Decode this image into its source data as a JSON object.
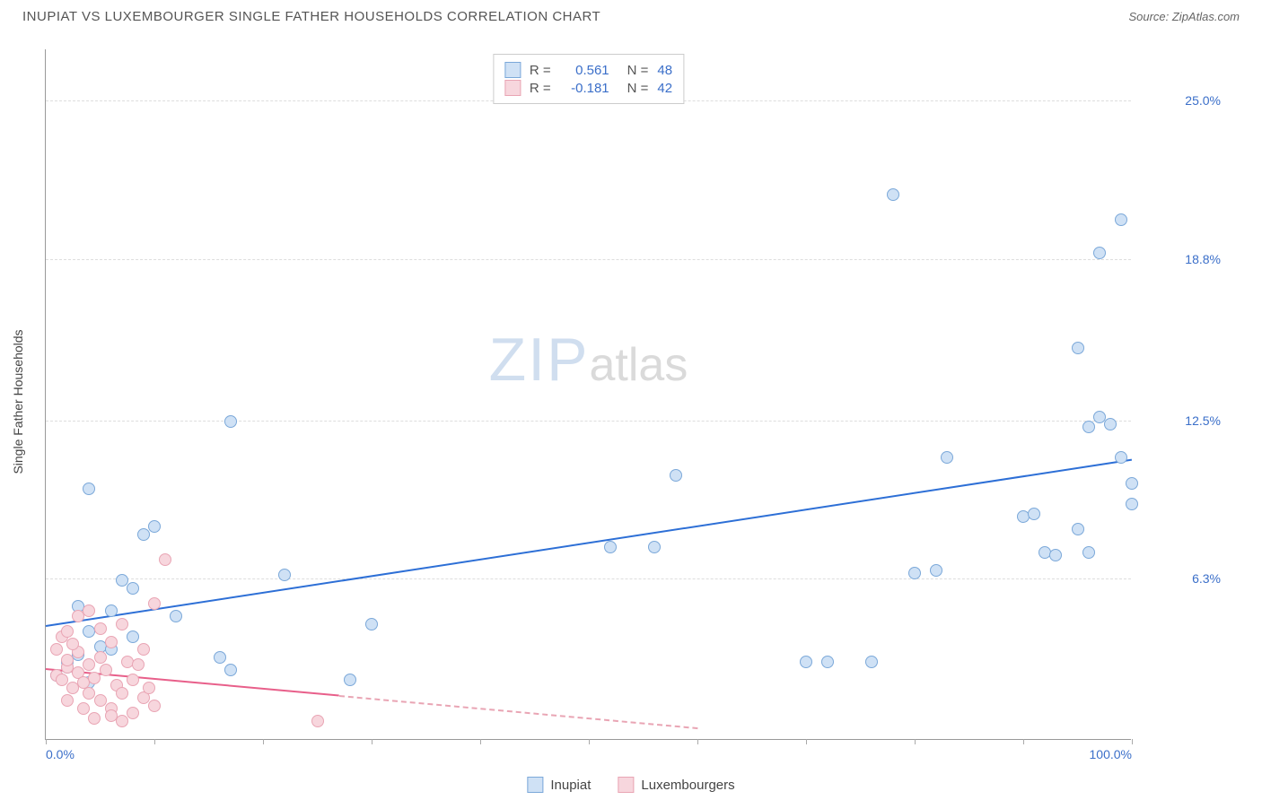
{
  "title": "INUPIAT VS LUXEMBOURGER SINGLE FATHER HOUSEHOLDS CORRELATION CHART",
  "source_label": "Source: ZipAtlas.com",
  "watermark_zip": "ZIP",
  "watermark_atlas": "atlas",
  "chart": {
    "type": "scatter",
    "y_axis_title": "Single Father Households",
    "xlim": [
      0,
      100
    ],
    "ylim": [
      0,
      27
    ],
    "x_ticks": [
      0,
      10,
      20,
      30,
      40,
      50,
      60,
      70,
      80,
      90,
      100
    ],
    "x_tick_labels_shown": {
      "0": "0.0%",
      "100": "100.0%"
    },
    "y_ticks": [
      6.3,
      12.5,
      18.8,
      25.0
    ],
    "y_tick_labels": [
      "6.3%",
      "12.5%",
      "18.8%",
      "25.0%"
    ],
    "grid_color": "#dddddd",
    "axis_color": "#999999",
    "background_color": "#ffffff",
    "x_label_color": "#3b6fc9",
    "y_label_color": "#3b6fc9",
    "marker_radius": 7,
    "marker_stroke_width": 1,
    "series": [
      {
        "name": "Inupiat",
        "fill": "#cfe1f5",
        "stroke": "#7ba8d9",
        "trend_color": "#2d6fd6",
        "trend_dash_color": "#2d6fd6",
        "R_label": "R =",
        "R_value": "0.561",
        "N_label": "N =",
        "N_value": "48",
        "trend": {
          "x1": 0,
          "y1": 4.5,
          "x2": 100,
          "y2": 11.0
        },
        "points": [
          {
            "x": 4,
            "y": 9.8
          },
          {
            "x": 17,
            "y": 12.4
          },
          {
            "x": 7,
            "y": 6.2
          },
          {
            "x": 8,
            "y": 5.9
          },
          {
            "x": 9,
            "y": 8.0
          },
          {
            "x": 10,
            "y": 8.3
          },
          {
            "x": 22,
            "y": 6.4
          },
          {
            "x": 4,
            "y": 4.2
          },
          {
            "x": 6,
            "y": 5.0
          },
          {
            "x": 2,
            "y": 3.0
          },
          {
            "x": 3,
            "y": 3.3
          },
          {
            "x": 5,
            "y": 3.6
          },
          {
            "x": 1,
            "y": 2.5
          },
          {
            "x": 2,
            "y": 2.8
          },
          {
            "x": 4,
            "y": 2.2
          },
          {
            "x": 16,
            "y": 3.2
          },
          {
            "x": 17,
            "y": 2.7
          },
          {
            "x": 28,
            "y": 2.3
          },
          {
            "x": 30,
            "y": 4.5
          },
          {
            "x": 52,
            "y": 7.5
          },
          {
            "x": 56,
            "y": 7.5
          },
          {
            "x": 58,
            "y": 10.3
          },
          {
            "x": 70,
            "y": 3.0
          },
          {
            "x": 72,
            "y": 3.0
          },
          {
            "x": 76,
            "y": 3.0
          },
          {
            "x": 80,
            "y": 6.5
          },
          {
            "x": 82,
            "y": 6.6
          },
          {
            "x": 83,
            "y": 11.0
          },
          {
            "x": 78,
            "y": 21.3
          },
          {
            "x": 90,
            "y": 8.7
          },
          {
            "x": 91,
            "y": 8.8
          },
          {
            "x": 92,
            "y": 7.3
          },
          {
            "x": 93,
            "y": 7.2
          },
          {
            "x": 95,
            "y": 8.2
          },
          {
            "x": 96,
            "y": 7.3
          },
          {
            "x": 95,
            "y": 15.3
          },
          {
            "x": 96,
            "y": 12.2
          },
          {
            "x": 97,
            "y": 12.6
          },
          {
            "x": 98,
            "y": 12.3
          },
          {
            "x": 97,
            "y": 19.0
          },
          {
            "x": 99,
            "y": 20.3
          },
          {
            "x": 99,
            "y": 11.0
          },
          {
            "x": 100,
            "y": 10.0
          },
          {
            "x": 100,
            "y": 9.2
          },
          {
            "x": 8,
            "y": 4.0
          },
          {
            "x": 12,
            "y": 4.8
          },
          {
            "x": 3,
            "y": 5.2
          },
          {
            "x": 6,
            "y": 3.5
          }
        ]
      },
      {
        "name": "Luxembourgers",
        "fill": "#f7d6dd",
        "stroke": "#e9a5b4",
        "trend_color": "#e85f8a",
        "trend_dash_color": "#e9a5b4",
        "R_label": "R =",
        "R_value": "-0.181",
        "N_label": "N =",
        "N_value": "42",
        "trend": {
          "x1": 0,
          "y1": 2.8,
          "x2": 60,
          "y2": 0.5
        },
        "trend_solid_until_x": 27,
        "points": [
          {
            "x": 1,
            "y": 2.5
          },
          {
            "x": 1.5,
            "y": 2.3
          },
          {
            "x": 2,
            "y": 2.8
          },
          {
            "x": 2,
            "y": 3.1
          },
          {
            "x": 2.5,
            "y": 2.0
          },
          {
            "x": 3,
            "y": 2.6
          },
          {
            "x": 3,
            "y": 3.4
          },
          {
            "x": 3.5,
            "y": 2.2
          },
          {
            "x": 4,
            "y": 2.9
          },
          {
            "x": 4,
            "y": 1.8
          },
          {
            "x": 4.5,
            "y": 2.4
          },
          {
            "x": 5,
            "y": 3.2
          },
          {
            "x": 5,
            "y": 1.5
          },
          {
            "x": 5.5,
            "y": 2.7
          },
          {
            "x": 6,
            "y": 3.8
          },
          {
            "x": 6,
            "y": 1.2
          },
          {
            "x": 6.5,
            "y": 2.1
          },
          {
            "x": 7,
            "y": 4.5
          },
          {
            "x": 7,
            "y": 1.8
          },
          {
            "x": 7.5,
            "y": 3.0
          },
          {
            "x": 8,
            "y": 2.3
          },
          {
            "x": 8,
            "y": 1.0
          },
          {
            "x": 8.5,
            "y": 2.9
          },
          {
            "x": 9,
            "y": 1.6
          },
          {
            "x": 9,
            "y": 3.5
          },
          {
            "x": 9.5,
            "y": 2.0
          },
          {
            "x": 10,
            "y": 5.3
          },
          {
            "x": 10,
            "y": 1.3
          },
          {
            "x": 11,
            "y": 7.0
          },
          {
            "x": 1,
            "y": 3.5
          },
          {
            "x": 1.5,
            "y": 4.0
          },
          {
            "x": 2,
            "y": 4.2
          },
          {
            "x": 3,
            "y": 4.8
          },
          {
            "x": 4,
            "y": 5.0
          },
          {
            "x": 5,
            "y": 4.3
          },
          {
            "x": 2.5,
            "y": 3.7
          },
          {
            "x": 6,
            "y": 0.9
          },
          {
            "x": 7,
            "y": 0.7
          },
          {
            "x": 25,
            "y": 0.7
          },
          {
            "x": 3.5,
            "y": 1.2
          },
          {
            "x": 4.5,
            "y": 0.8
          },
          {
            "x": 2,
            "y": 1.5
          }
        ]
      }
    ]
  },
  "legend_bottom": [
    {
      "label": "Inupiat",
      "fill": "#cfe1f5",
      "stroke": "#7ba8d9"
    },
    {
      "label": "Luxembourgers",
      "fill": "#f7d6dd",
      "stroke": "#e9a5b4"
    }
  ]
}
